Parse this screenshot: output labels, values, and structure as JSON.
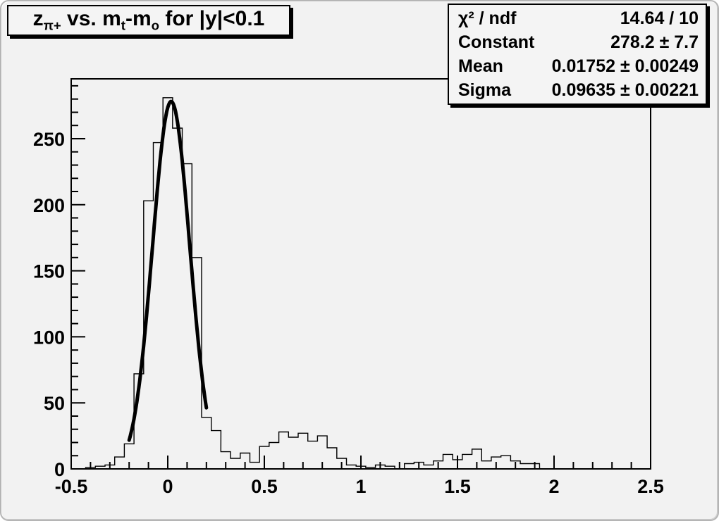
{
  "title_box": {
    "text": "z_{π+} vs. m_{t}-m_{o} for |y|<0.1",
    "segments": [
      {
        "t": "z"
      },
      {
        "t": "π+"
      },
      {
        "t": " vs. m"
      },
      {
        "t": "t"
      },
      {
        "t": "-m"
      },
      {
        "t": "o"
      },
      {
        "t": " for |y|<0.1"
      }
    ]
  },
  "stats_box": {
    "rows": [
      {
        "label": "χ² / ndf",
        "value": "14.64 / 10"
      },
      {
        "label": "Constant",
        "value": "278.2 ± 7.7"
      },
      {
        "label": "Mean",
        "value": "0.01752 ± 0.00249"
      },
      {
        "label": "Sigma",
        "value": "0.09635 ± 0.00221"
      }
    ]
  },
  "colors": {
    "canvas_bg": "#f2f2f2",
    "frame_line": "#000000",
    "hist_line": "#000000",
    "fit_line": "#000000",
    "box_bg": "#f4f4f4",
    "box_shadow": "#000000",
    "text": "#000000"
  },
  "chart_data": {
    "type": "bar",
    "subtype": "step-histogram-with-gaussian-fit",
    "title": "z_{π+} vs. m_{t}-m_{o} for |y|<0.1",
    "xlabel": "",
    "ylabel": "",
    "xlim": [
      -0.5,
      2.5
    ],
    "ylim": [
      0,
      295.3
    ],
    "grid": false,
    "legend_position": "stats box top-right",
    "bin_width": 0.05,
    "bin_start_center": -0.45,
    "values": [
      0,
      1,
      2,
      3,
      9,
      19,
      72,
      203,
      247,
      281,
      258,
      231,
      160,
      39,
      29,
      13,
      8,
      12,
      5,
      17,
      20,
      28,
      24,
      27,
      21,
      25,
      16,
      8,
      3,
      2,
      1,
      3,
      2,
      0,
      4,
      5,
      3,
      6,
      11,
      7,
      11,
      15,
      6,
      9,
      10,
      6,
      4,
      4,
      0,
      0,
      0,
      0,
      0,
      0,
      0,
      0,
      0,
      0,
      0
    ],
    "x_major_ticks": [
      -0.5,
      0,
      0.5,
      1,
      1.5,
      2,
      2.5
    ],
    "x_major_labels": [
      "-0.5",
      "0",
      "0.5",
      "1",
      "1.5",
      "2",
      "2.5"
    ],
    "x_minor_step": 0.1,
    "y_major_ticks": [
      0,
      50,
      100,
      150,
      200,
      250
    ],
    "y_major_labels": [
      "0",
      "50",
      "100",
      "150",
      "200",
      "250"
    ],
    "y_minor_step": 10,
    "fit": {
      "type": "gaussian",
      "chi2": 14.64,
      "ndf": 10,
      "constant": 278.2,
      "constant_err": 7.7,
      "mean": 0.01752,
      "mean_err": 0.00249,
      "sigma": 0.09635,
      "sigma_err": 0.00221,
      "range": [
        -0.2,
        0.2
      ]
    }
  }
}
